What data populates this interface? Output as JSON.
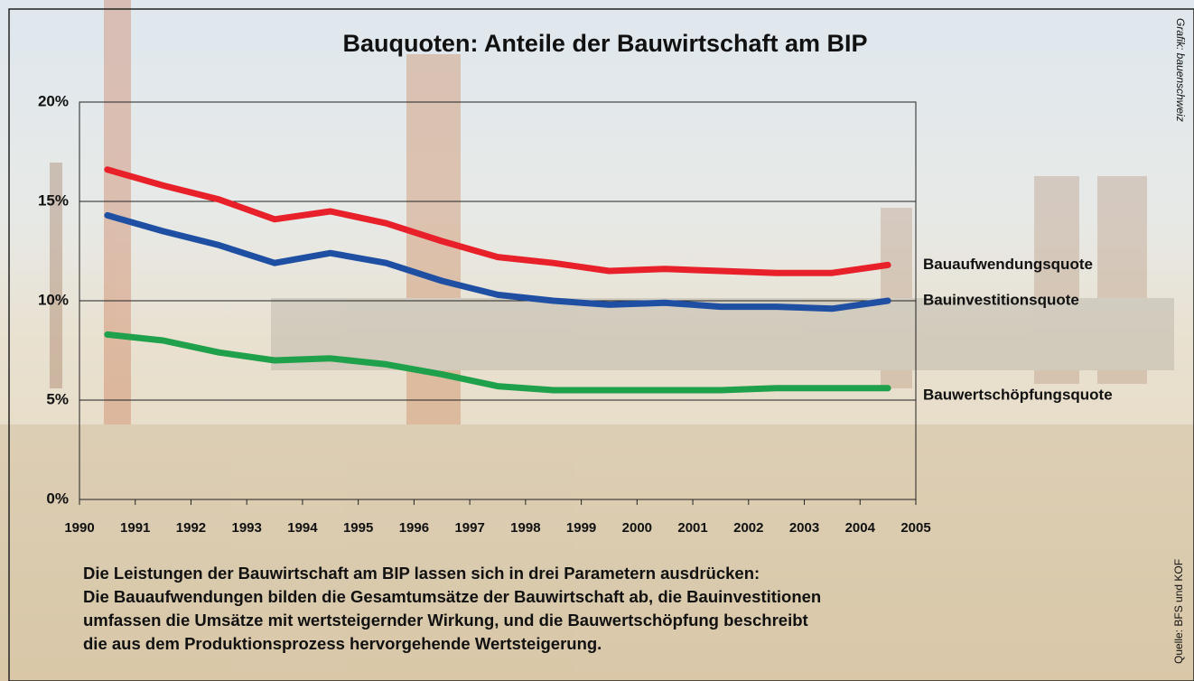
{
  "chart_data": {
    "type": "line",
    "title": "Bauquoten: Anteile der Bauwirtschaft am BIP",
    "x": [
      1990.5,
      1991.5,
      1992.5,
      1993.5,
      1994.5,
      1995.5,
      1996.5,
      1997.5,
      1998.5,
      1999.5,
      2000.5,
      2001.5,
      2002.5,
      2003.5,
      2004.5
    ],
    "xlim": [
      1990,
      2005
    ],
    "xticks": [
      1990,
      1991,
      1992,
      1993,
      1994,
      1995,
      1996,
      1997,
      1998,
      1999,
      2000,
      2001,
      2002,
      2003,
      2004,
      2005
    ],
    "ylim": [
      0,
      20
    ],
    "yticks": [
      {
        "value": 0,
        "label": "0%"
      },
      {
        "value": 5,
        "label": "5%"
      },
      {
        "value": 10,
        "label": "10%"
      },
      {
        "value": 15,
        "label": "15%"
      },
      {
        "value": 20,
        "label": "20%"
      }
    ],
    "grid": true,
    "series": [
      {
        "name": "Bauaufwendungsquote",
        "color": "#e8202a",
        "values": [
          16.6,
          15.8,
          15.1,
          14.1,
          14.5,
          13.9,
          13.0,
          12.2,
          11.9,
          11.5,
          11.6,
          11.5,
          11.4,
          11.4,
          11.8
        ]
      },
      {
        "name": "Bauinvestitionsquote",
        "color": "#1f4fa3",
        "values": [
          14.3,
          13.5,
          12.8,
          11.9,
          12.4,
          11.9,
          11.0,
          10.3,
          10.0,
          9.8,
          9.9,
          9.7,
          9.7,
          9.6,
          10.0
        ]
      },
      {
        "name": "Bauwertschöpfungsquote",
        "color": "#1fa04a",
        "values": [
          8.3,
          8.0,
          7.4,
          7.0,
          7.1,
          6.8,
          6.3,
          5.7,
          5.5,
          5.5,
          5.5,
          5.5,
          5.6,
          5.6,
          5.6
        ]
      }
    ],
    "description": [
      "Die Leistungen der Bauwirtschaft am BIP lassen sich in drei Parametern ausdrücken:",
      "Die Bauaufwendungen bilden die Gesamtumsätze der Bauwirtschaft ab, die Bauinvestitionen",
      "umfassen die Umsätze mit wertsteigernder Wirkung, und die Bauwertschöpfung beschreibt",
      "die aus dem Produktionsprozess hervorgehende Wertsteigerung."
    ],
    "credit": "Grafik: bauenschweiz",
    "source": "Quelle: BFS und KOF"
  }
}
